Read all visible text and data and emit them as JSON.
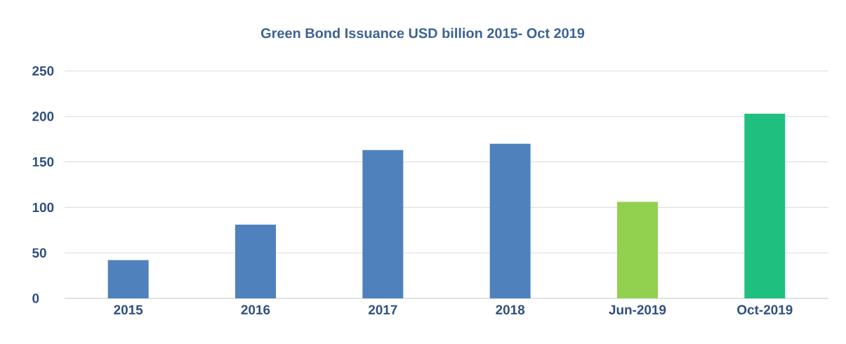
{
  "chart_data": {
    "type": "bar",
    "title": "Green Bond Issuance USD billion 2015- Oct 2019",
    "categories": [
      "2015",
      "2016",
      "2017",
      "2018",
      "Jun-2019",
      "Oct-2019"
    ],
    "values": [
      42,
      81,
      163,
      170,
      106,
      203
    ],
    "colors": [
      "#4f81bd",
      "#4f81bd",
      "#4f81bd",
      "#4f81bd",
      "#92d050",
      "#1fbf7f"
    ],
    "ylim": [
      0,
      250
    ],
    "yticks": [
      0,
      50,
      100,
      150,
      200,
      250
    ],
    "grid": "y"
  }
}
